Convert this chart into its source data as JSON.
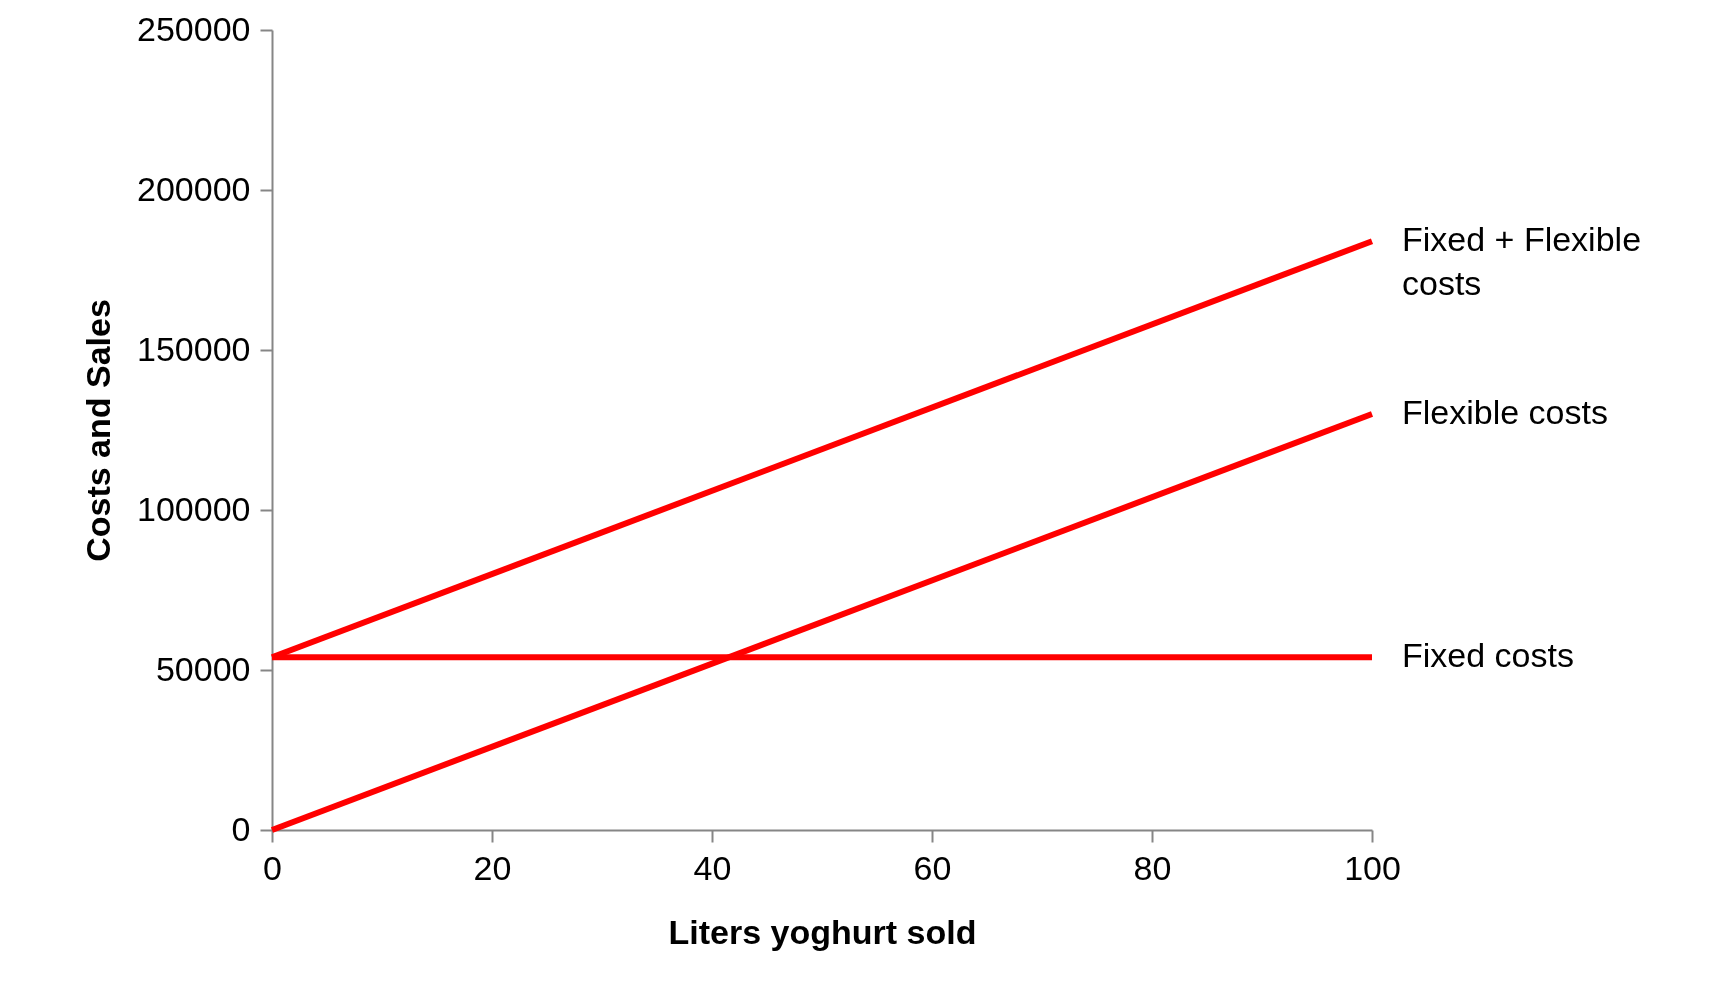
{
  "chart_data": {
    "type": "line",
    "xlabel": "Liters yoghurt sold",
    "ylabel": "Costs and Sales",
    "x": [
      0,
      100
    ],
    "series": [
      {
        "name": "Fixed + Flexible costs",
        "color": "#ff0000",
        "values": [
          54000,
          184000
        ]
      },
      {
        "name": "Flexible costs",
        "color": "#ff0000",
        "values": [
          0,
          130000
        ]
      },
      {
        "name": "Fixed costs",
        "color": "#ff0000",
        "values": [
          54000,
          54000
        ]
      }
    ],
    "xlim": [
      0,
      100
    ],
    "xticks": [
      0,
      20,
      40,
      60,
      80,
      100
    ],
    "ylim": [
      0,
      250000
    ],
    "yticks": [
      0,
      50000,
      100000,
      150000,
      200000,
      250000
    ],
    "grid": false,
    "legend": false,
    "marker": "none",
    "line_style": "solid"
  }
}
